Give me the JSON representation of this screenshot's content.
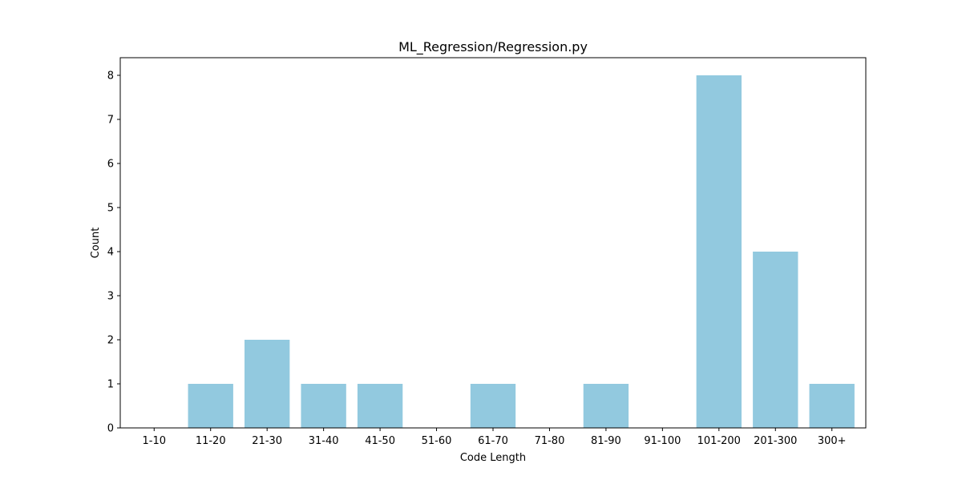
{
  "chart_data": {
    "type": "bar",
    "title": "ML_Regression/Regression.py",
    "xlabel": "Code Length",
    "ylabel": "Count",
    "categories": [
      "1-10",
      "11-20",
      "21-30",
      "31-40",
      "41-50",
      "51-60",
      "61-70",
      "71-80",
      "81-90",
      "91-100",
      "101-200",
      "201-300",
      "300+"
    ],
    "values": [
      0,
      1,
      2,
      1,
      1,
      0,
      1,
      0,
      1,
      0,
      8,
      4,
      1
    ],
    "ylim": [
      0,
      8.4
    ],
    "yticks": [
      0,
      1,
      2,
      3,
      4,
      5,
      6,
      7,
      8
    ],
    "grid": false,
    "legend": "none",
    "bar_color": "#92c9df"
  }
}
